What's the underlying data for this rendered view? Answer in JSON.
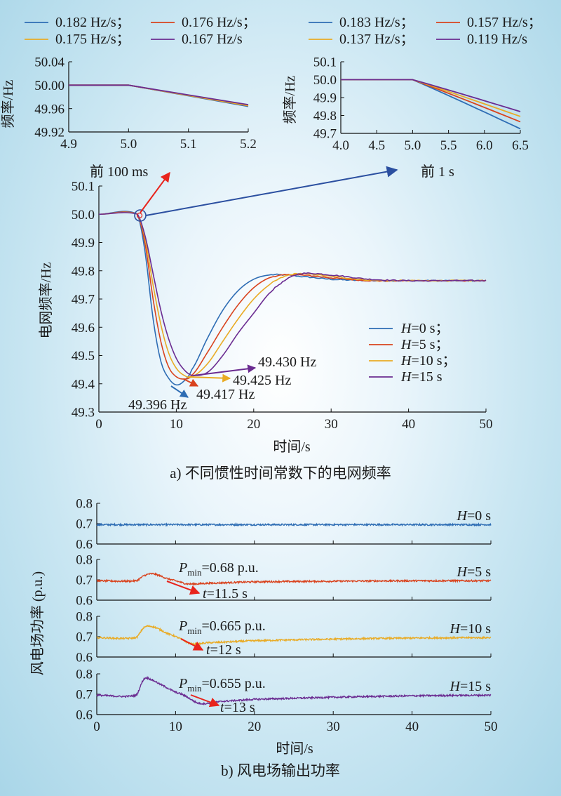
{
  "panel_a": {
    "caption": "a) 不同惯性时间常数下的电网频率",
    "main": {
      "xlabel": "时间/s",
      "ylabel": "电网频率/Hz",
      "xlim": [
        0,
        50
      ],
      "ylim": [
        49.3,
        50.1
      ],
      "xticks": [
        0,
        10,
        20,
        30,
        40,
        50
      ],
      "yticks": [
        49.3,
        49.4,
        49.5,
        49.6,
        49.7,
        49.8,
        49.9,
        50.0,
        50.1
      ],
      "annotations": [
        {
          "text": "49.396 Hz",
          "x": 10.0,
          "y": 49.396,
          "color": "#2e5fa8"
        },
        {
          "text": "49.417 Hz",
          "x": 11.0,
          "y": 49.417,
          "color": "#e0411f"
        },
        {
          "text": "49.425 Hz",
          "x": 11.8,
          "y": 49.425,
          "color": "#e8a91e"
        },
        {
          "text": "49.430 Hz",
          "x": 12.5,
          "y": 49.43,
          "color": "#7e3aa0"
        }
      ],
      "zoom_labels": [
        "前 100 ms",
        "前 1 s"
      ]
    },
    "inset_100ms": {
      "ylabel": "频率/Hz",
      "xlim": [
        4.9,
        5.2
      ],
      "ylim": [
        49.92,
        50.04
      ],
      "xticks": [
        "4.9",
        "5.0",
        "5.1",
        "5.2"
      ],
      "yticks": [
        "49.92",
        "49.96",
        "50.00",
        "50.04"
      ],
      "legend": [
        "0.182 Hz/s；",
        "0.176 Hz/s；",
        "0.175 Hz/s；",
        "0.167 Hz/s"
      ],
      "rates": [
        0.182,
        0.176,
        0.175,
        0.167
      ]
    },
    "inset_1s": {
      "ylabel": "频率/Hz",
      "xlim": [
        4.0,
        6.5
      ],
      "ylim": [
        49.7,
        50.1
      ],
      "xticks": [
        "4.0",
        "4.5",
        "5.0",
        "5.5",
        "6.0",
        "6.5"
      ],
      "yticks": [
        "49.7",
        "49.8",
        "49.9",
        "50.0",
        "50.1"
      ],
      "legend": [
        "0.183 Hz/s；",
        "0.157 Hz/s；",
        "0.137 Hz/s；",
        "0.119 Hz/s"
      ],
      "rates": [
        0.183,
        0.157,
        0.137,
        0.119
      ]
    }
  },
  "panel_b": {
    "caption": "b) 风电场输出功率",
    "xlabel": "时间/s",
    "ylabel": "风电场功率 (p.u.)",
    "xlim": [
      0,
      50
    ],
    "xticks": [
      0,
      10,
      20,
      30,
      40,
      50
    ],
    "subplots": [
      {
        "h_label": "H",
        "h_value": "=0 s",
        "ylim": [
          0.6,
          0.8
        ],
        "yticks": [
          "0.6",
          "0.7",
          "0.8"
        ]
      },
      {
        "h_label": "H",
        "h_value": "=5 s",
        "ylim": [
          0.6,
          0.8
        ],
        "yticks": [
          "0.6",
          "0.7",
          "0.8"
        ],
        "pmin_value": "=0.68 p.u.",
        "t_value": "=11.5 s"
      },
      {
        "h_label": "H",
        "h_value": "=10 s",
        "ylim": [
          0.6,
          0.8
        ],
        "yticks": [
          "0.6",
          "0.7",
          "0.8"
        ],
        "pmin_value": "=0.665 p.u.",
        "t_value": "=12 s"
      },
      {
        "h_label": "H",
        "h_value": "=15 s",
        "ylim": [
          0.6,
          0.8
        ],
        "yticks": [
          "0.6",
          "0.7",
          "0.8"
        ],
        "pmin_value": "=0.655 p.u.",
        "t_value": "=13 s"
      }
    ]
  },
  "legend_main": [
    {
      "label_h": "H",
      "label_rest": "=0 s；"
    },
    {
      "label_h": "H",
      "label_rest": "=5 s；"
    },
    {
      "label_h": "H",
      "label_rest": "=10 s；"
    },
    {
      "label_h": "H",
      "label_rest": "=15 s"
    }
  ],
  "colors": [
    "#2e6db4",
    "#d9431e",
    "#e9ab25",
    "#6b2c91"
  ],
  "arrow_colors": {
    "red": "#e8241c",
    "blue": "#2b4fa0"
  },
  "chart_data": [
    {
      "type": "line",
      "title": "",
      "xlabel": "时间/s",
      "ylabel": "电网频率/Hz",
      "xlim": [
        0,
        50
      ],
      "ylim": [
        49.3,
        50.1
      ],
      "legend_position": "center-right",
      "series": [
        {
          "name": "H=0 s",
          "x": [
            0,
            5,
            6,
            7,
            8,
            9,
            10,
            11,
            12,
            14,
            16,
            18,
            20,
            22,
            24,
            26,
            30,
            35,
            40,
            45,
            50
          ],
          "y": [
            50.0,
            50.0,
            49.86,
            49.63,
            49.48,
            49.42,
            49.396,
            49.41,
            49.45,
            49.56,
            49.66,
            49.73,
            49.77,
            49.785,
            49.785,
            49.78,
            49.77,
            49.765,
            49.765,
            49.765,
            49.765
          ]
        },
        {
          "name": "H=5 s",
          "x": [
            0,
            5,
            6,
            7,
            8,
            9,
            10,
            11,
            12,
            14,
            16,
            18,
            20,
            22,
            24,
            26,
            30,
            35,
            40,
            45,
            50
          ],
          "y": [
            50.0,
            50.0,
            49.89,
            49.7,
            49.55,
            49.46,
            49.425,
            49.417,
            49.43,
            49.51,
            49.6,
            49.68,
            49.74,
            49.775,
            49.785,
            49.785,
            49.775,
            49.765,
            49.765,
            49.765,
            49.765
          ]
        },
        {
          "name": "H=10 s",
          "x": [
            0,
            5,
            6,
            7,
            8,
            9,
            10,
            11,
            12,
            14,
            16,
            18,
            20,
            22,
            24,
            26,
            30,
            35,
            40,
            45,
            50
          ],
          "y": [
            50.0,
            50.0,
            49.91,
            49.75,
            49.61,
            49.51,
            49.455,
            49.43,
            49.425,
            49.47,
            49.55,
            49.63,
            49.7,
            49.75,
            49.78,
            49.79,
            49.78,
            49.767,
            49.765,
            49.765,
            49.765
          ]
        },
        {
          "name": "H=15 s",
          "x": [
            0,
            5,
            6,
            7,
            8,
            9,
            10,
            11,
            12,
            14,
            16,
            18,
            20,
            22,
            24,
            26,
            30,
            35,
            40,
            45,
            50
          ],
          "y": [
            50.0,
            50.0,
            49.92,
            49.79,
            49.66,
            49.56,
            49.49,
            49.45,
            49.43,
            49.44,
            49.5,
            49.58,
            49.65,
            49.72,
            49.765,
            49.79,
            49.785,
            49.77,
            49.765,
            49.765,
            49.765
          ]
        }
      ],
      "annotations": [
        "49.396 Hz",
        "49.417 Hz",
        "49.425 Hz",
        "49.430 Hz"
      ]
    },
    {
      "type": "line",
      "title": "",
      "xlabel": "",
      "ylabel": "频率/Hz",
      "xlim": [
        4.9,
        5.2
      ],
      "ylim": [
        49.92,
        50.04
      ],
      "legend_position": "top",
      "series": [
        {
          "name": "0.182 Hz/s",
          "x": [
            4.9,
            5.0,
            5.2
          ],
          "y": [
            50.0,
            50.0,
            49.9636
          ]
        },
        {
          "name": "0.176 Hz/s",
          "x": [
            4.9,
            5.0,
            5.2
          ],
          "y": [
            50.0,
            50.0,
            49.9648
          ]
        },
        {
          "name": "0.175 Hz/s",
          "x": [
            4.9,
            5.0,
            5.2
          ],
          "y": [
            50.0,
            50.0,
            49.965
          ]
        },
        {
          "name": "0.167 Hz/s",
          "x": [
            4.9,
            5.0,
            5.2
          ],
          "y": [
            50.0,
            50.0,
            49.9666
          ]
        }
      ]
    },
    {
      "type": "line",
      "title": "",
      "xlabel": "",
      "ylabel": "频率/Hz",
      "xlim": [
        4.0,
        6.5
      ],
      "ylim": [
        49.7,
        50.1
      ],
      "legend_position": "top",
      "series": [
        {
          "name": "0.183 Hz/s",
          "x": [
            4.0,
            5.0,
            6.5
          ],
          "y": [
            50.0,
            50.0,
            49.7255
          ]
        },
        {
          "name": "0.157 Hz/s",
          "x": [
            4.0,
            5.0,
            6.5
          ],
          "y": [
            50.0,
            50.0,
            49.7645
          ]
        },
        {
          "name": "0.137 Hz/s",
          "x": [
            4.0,
            5.0,
            6.5
          ],
          "y": [
            50.0,
            50.0,
            49.7945
          ]
        },
        {
          "name": "0.119 Hz/s",
          "x": [
            4.0,
            5.0,
            6.5
          ],
          "y": [
            50.0,
            50.0,
            49.8215
          ]
        }
      ]
    },
    {
      "type": "line",
      "title": "",
      "xlabel": "时间/s",
      "ylabel": "风电场功率 (p.u.)",
      "xlim": [
        0,
        50
      ],
      "ylim": [
        0.6,
        0.8
      ],
      "series": [
        {
          "name": "H=0 s",
          "x": [
            0,
            10,
            20,
            30,
            40,
            50
          ],
          "y": [
            0.695,
            0.695,
            0.695,
            0.695,
            0.695,
            0.695
          ]
        },
        {
          "name": "H=5 s",
          "x": [
            0,
            5,
            6,
            7,
            8,
            9,
            10,
            11.5,
            14,
            20,
            30,
            40,
            50
          ],
          "y": [
            0.695,
            0.695,
            0.72,
            0.73,
            0.72,
            0.705,
            0.695,
            0.68,
            0.683,
            0.69,
            0.693,
            0.695,
            0.695
          ]
        },
        {
          "name": "H=10 s",
          "x": [
            0,
            5,
            6,
            7,
            8,
            9,
            10,
            12,
            14,
            20,
            30,
            40,
            50
          ],
          "y": [
            0.695,
            0.695,
            0.745,
            0.75,
            0.735,
            0.715,
            0.7,
            0.665,
            0.67,
            0.68,
            0.688,
            0.693,
            0.695
          ]
        },
        {
          "name": "H=15 s",
          "x": [
            0,
            5,
            6,
            7,
            8,
            9,
            10,
            11,
            13,
            16,
            20,
            30,
            40,
            50
          ],
          "y": [
            0.695,
            0.695,
            0.775,
            0.77,
            0.75,
            0.73,
            0.71,
            0.695,
            0.655,
            0.665,
            0.675,
            0.685,
            0.692,
            0.695
          ]
        }
      ]
    }
  ]
}
